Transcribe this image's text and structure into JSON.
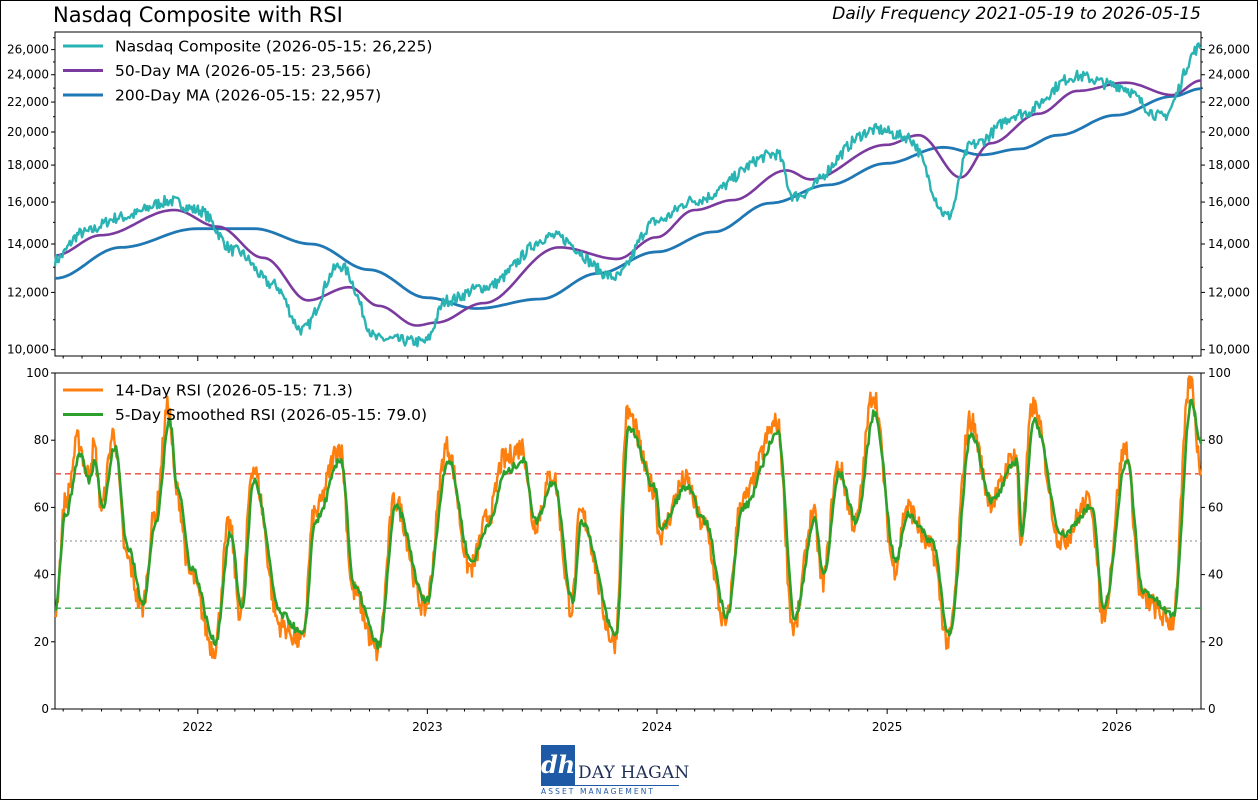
{
  "title": "Nasdaq Composite with RSI",
  "subtitle": "Daily Frequency 2021-05-19 to 2026-05-15",
  "logo": {
    "name": "DAY HAGAN",
    "tagline": "ASSET MANAGEMENT",
    "mark": "dh"
  },
  "chart_data": [
    {
      "type": "line",
      "panel": "price",
      "y_scale": "log",
      "ylim": [
        9800,
        27500
      ],
      "y_ticks": [
        10000,
        12000,
        14000,
        16000,
        18000,
        20000,
        22000,
        24000,
        26000
      ],
      "y_tick_labels": [
        "10,000",
        "12,000",
        "14,000",
        "16,000",
        "18,000",
        "20,000",
        "22,000",
        "24,000",
        "26,000"
      ],
      "x_range": [
        "2021-05-19",
        "2026-05-15"
      ],
      "legend_position": "top-left",
      "series": [
        {
          "name": "Nasdaq Composite (2026-05-15: 26,225)",
          "color": "#2ab3b3",
          "x": [
            "2021-05-19",
            "2021-07-01",
            "2021-09-01",
            "2021-11-19",
            "2022-01-01",
            "2022-03-01",
            "2022-05-01",
            "2022-06-16",
            "2022-08-15",
            "2022-10-14",
            "2022-12-28",
            "2023-02-01",
            "2023-04-01",
            "2023-07-19",
            "2023-10-27",
            "2023-12-31",
            "2024-03-01",
            "2024-07-10",
            "2024-08-05",
            "2024-12-16",
            "2025-01-31",
            "2025-04-08",
            "2025-05-15",
            "2025-08-01",
            "2025-10-30",
            "2026-01-01",
            "2026-03-15",
            "2026-05-15"
          ],
          "values": [
            13300,
            14500,
            15250,
            16050,
            15600,
            13700,
            12300,
            10650,
            13050,
            10350,
            10250,
            11700,
            12200,
            14350,
            12600,
            15050,
            16100,
            18650,
            16300,
            20150,
            19700,
            15300,
            19200,
            21200,
            23900,
            23200,
            21000,
            26225
          ]
        },
        {
          "name": "50-Day MA (2026-05-15: 23,566)",
          "color": "#7b3a9e",
          "x": [
            "2021-05-19",
            "2021-08-01",
            "2021-11-25",
            "2022-02-01",
            "2022-04-15",
            "2022-06-25",
            "2022-08-30",
            "2022-10-15",
            "2022-12-15",
            "2023-01-15",
            "2023-04-01",
            "2023-07-30",
            "2023-10-30",
            "2023-12-31",
            "2024-03-01",
            "2024-05-01",
            "2024-07-25",
            "2024-09-01",
            "2024-12-31",
            "2025-02-20",
            "2025-04-28",
            "2025-06-15",
            "2025-08-30",
            "2025-10-31",
            "2026-01-15",
            "2026-03-31",
            "2026-05-15"
          ],
          "values": [
            13500,
            14400,
            15600,
            14800,
            13400,
            11700,
            12200,
            11500,
            10800,
            10900,
            11600,
            13850,
            13350,
            14300,
            15600,
            16100,
            17700,
            17200,
            19200,
            19800,
            17300,
            19300,
            21200,
            22800,
            23400,
            22500,
            23566
          ]
        },
        {
          "name": "200-Day MA (2026-05-15: 22,957)",
          "color": "#1f77b4",
          "x": [
            "2021-05-19",
            "2021-09-01",
            "2021-12-31",
            "2022-03-31",
            "2022-06-30",
            "2022-09-30",
            "2022-12-31",
            "2023-03-20",
            "2023-06-30",
            "2023-09-30",
            "2023-12-31",
            "2024-03-31",
            "2024-06-30",
            "2024-09-30",
            "2024-12-31",
            "2025-03-31",
            "2025-05-31",
            "2025-07-31",
            "2025-09-30",
            "2025-12-31",
            "2026-03-31",
            "2026-05-15"
          ],
          "values": [
            12550,
            13850,
            14700,
            14700,
            14000,
            12900,
            11800,
            11400,
            11750,
            12750,
            13650,
            14550,
            15950,
            16900,
            18100,
            19050,
            18600,
            18950,
            19800,
            21100,
            22400,
            22957
          ]
        }
      ]
    },
    {
      "type": "line",
      "panel": "rsi",
      "ylim": [
        0,
        100
      ],
      "y_ticks": [
        0,
        20,
        40,
        60,
        80,
        100
      ],
      "x_ticks": [
        "2022",
        "2023",
        "2024",
        "2025",
        "2026"
      ],
      "x_tick_dates": [
        "2022-01-01",
        "2023-01-01",
        "2024-01-01",
        "2025-01-01",
        "2026-01-01"
      ],
      "reference_lines": [
        {
          "value": 70,
          "color": "#e8453c",
          "style": "dashed"
        },
        {
          "value": 50,
          "color": "#b0b0b0",
          "style": "dotted"
        },
        {
          "value": 30,
          "color": "#3aa845",
          "style": "dashed"
        }
      ],
      "legend_position": "top-left",
      "series": [
        {
          "name": "14-Day RSI (2026-05-15: 71.3)",
          "color": "#ff7f0e",
          "x": [
            "2021-05-19",
            "2021-06-05",
            "2021-06-25",
            "2021-07-10",
            "2021-07-20",
            "2021-08-01",
            "2021-08-20",
            "2021-09-10",
            "2021-10-04",
            "2021-10-25",
            "2021-11-15",
            "2021-11-28",
            "2021-12-20",
            "2022-01-27",
            "2022-02-20",
            "2022-03-10",
            "2022-03-29",
            "2022-05-12",
            "2022-06-16",
            "2022-07-05",
            "2022-08-15",
            "2022-09-05",
            "2022-10-14",
            "2022-11-10",
            "2022-12-28",
            "2023-02-01",
            "2023-03-10",
            "2023-04-10",
            "2023-05-01",
            "2023-06-01",
            "2023-06-20",
            "2023-07-19",
            "2023-08-18",
            "2023-09-01",
            "2023-10-26",
            "2023-11-15",
            "2023-12-27",
            "2024-01-05",
            "2024-02-15",
            "2024-03-15",
            "2024-04-19",
            "2024-05-15",
            "2024-07-10",
            "2024-08-05",
            "2024-09-06",
            "2024-09-20",
            "2024-10-15",
            "2024-11-11",
            "2024-12-10",
            "2025-01-13",
            "2025-02-01",
            "2025-03-12",
            "2025-04-08",
            "2025-05-13",
            "2025-06-15",
            "2025-07-25",
            "2025-08-01",
            "2025-08-20",
            "2025-10-05",
            "2025-11-20",
            "2025-12-10",
            "2026-01-15",
            "2026-02-10",
            "2026-03-30",
            "2026-04-28",
            "2026-05-15"
          ],
          "values": [
            29,
            62,
            80,
            70,
            78,
            60,
            82,
            45,
            30,
            58,
            90,
            65,
            40,
            18,
            55,
            28,
            72,
            25,
            20,
            58,
            78,
            35,
            17,
            62,
            30,
            78,
            42,
            58,
            74,
            78,
            55,
            70,
            30,
            58,
            20,
            88,
            66,
            52,
            68,
            55,
            25,
            62,
            85,
            24,
            58,
            38,
            72,
            55,
            94,
            42,
            60,
            48,
            20,
            86,
            62,
            76,
            50,
            90,
            50,
            62,
            28,
            78,
            33,
            26,
            98,
            71.3
          ]
        },
        {
          "name": "5-Day Smoothed RSI (2026-05-15: 79.0)",
          "color": "#2ca02c",
          "x": [
            "2021-05-19",
            "2021-06-05",
            "2021-06-28",
            "2021-07-12",
            "2021-07-22",
            "2021-08-03",
            "2021-08-22",
            "2021-09-12",
            "2021-10-06",
            "2021-10-27",
            "2021-11-17",
            "2021-11-30",
            "2021-12-22",
            "2022-01-29",
            "2022-02-22",
            "2022-03-12",
            "2022-03-31",
            "2022-05-14",
            "2022-06-18",
            "2022-07-07",
            "2022-08-17",
            "2022-09-07",
            "2022-10-16",
            "2022-11-12",
            "2022-12-30",
            "2023-02-03",
            "2023-03-12",
            "2023-04-12",
            "2023-05-03",
            "2023-06-03",
            "2023-06-22",
            "2023-07-21",
            "2023-08-20",
            "2023-09-03",
            "2023-10-28",
            "2023-11-17",
            "2023-12-29",
            "2024-01-07",
            "2024-02-17",
            "2024-03-17",
            "2024-04-21",
            "2024-05-17",
            "2024-07-12",
            "2024-08-07",
            "2024-09-08",
            "2024-09-22",
            "2024-10-17",
            "2024-11-13",
            "2024-12-12",
            "2025-01-15",
            "2025-02-03",
            "2025-03-14",
            "2025-04-10",
            "2025-05-15",
            "2025-06-17",
            "2025-07-27",
            "2025-08-03",
            "2025-08-22",
            "2025-10-07",
            "2025-11-22",
            "2025-12-12",
            "2026-01-17",
            "2026-02-12",
            "2026-04-01",
            "2026-04-30",
            "2026-05-15"
          ],
          "values": [
            30,
            58,
            76,
            68,
            74,
            60,
            78,
            48,
            32,
            56,
            86,
            66,
            42,
            20,
            52,
            30,
            68,
            28,
            22,
            56,
            74,
            36,
            19,
            60,
            32,
            74,
            44,
            56,
            70,
            74,
            56,
            68,
            32,
            56,
            22,
            84,
            66,
            54,
            66,
            56,
            28,
            60,
            82,
            27,
            56,
            40,
            70,
            56,
            88,
            44,
            58,
            50,
            22,
            82,
            62,
            74,
            52,
            86,
            52,
            60,
            30,
            74,
            35,
            28,
            92,
            79.0
          ]
        }
      ]
    }
  ]
}
